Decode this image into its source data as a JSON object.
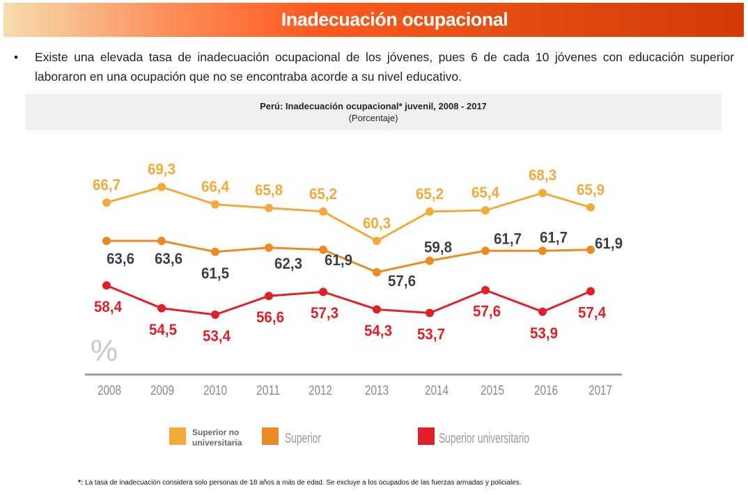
{
  "header": {
    "title": "Inadecuación ocupacional"
  },
  "bullet": "Existe una elevada tasa de inadecuación ocupacional de los jóvenes, pues 6 de cada 10 jóvenes con educación superior laboraron en una ocupación que no se encontraba acorde a su nivel educativo.",
  "chart_data": {
    "type": "line",
    "title": "Perú: Inadecuación ocupacional* juvenil, 2008 - 2017",
    "subtitle": "(Porcentaje)",
    "ylabel": "%",
    "categories": [
      "2008",
      "2009",
      "2010",
      "2011",
      "2012",
      "2013",
      "2014",
      "2015",
      "2016",
      "2017"
    ],
    "grid": false,
    "legend_position": "bottom",
    "series": [
      {
        "name": "Superior no universitaria",
        "color": "#f5a93a",
        "values": [
          66.7,
          69.3,
          66.4,
          65.8,
          65.2,
          60.3,
          65.2,
          65.4,
          68.3,
          65.9
        ],
        "labels": [
          "66,7",
          "69,3",
          "66,4",
          "65,8",
          "65,2",
          "60,3",
          "65,2",
          "65,4",
          "68,3",
          "65,9"
        ]
      },
      {
        "name": "Superior",
        "color": "#ee8a24",
        "label_color": "#3a3f4a",
        "values": [
          63.6,
          63.6,
          61.5,
          62.3,
          61.9,
          57.6,
          59.8,
          61.7,
          61.7,
          61.9
        ],
        "labels": [
          "63,6",
          "63,6",
          "61,5",
          "62,3",
          "61,9",
          "57,6",
          "59,8",
          "61,7",
          "61,7",
          "61,9"
        ]
      },
      {
        "name": "Superior universitario",
        "color": "#e21f26",
        "values": [
          58.4,
          54.5,
          53.4,
          56.6,
          57.3,
          54.3,
          53.7,
          57.6,
          53.9,
          57.4
        ],
        "labels": [
          "58,4",
          "54,5",
          "53,4",
          "56,6",
          "57,3",
          "54,3",
          "53,7",
          "57,6",
          "53,9",
          "57,4"
        ]
      }
    ]
  },
  "footnote": {
    "mark": "*:",
    "text": " La tasa de inadecuación considera solo personas de 18 años a más de edad. Se excluye a los ocupados de las fuerzas armadas y policiales."
  }
}
